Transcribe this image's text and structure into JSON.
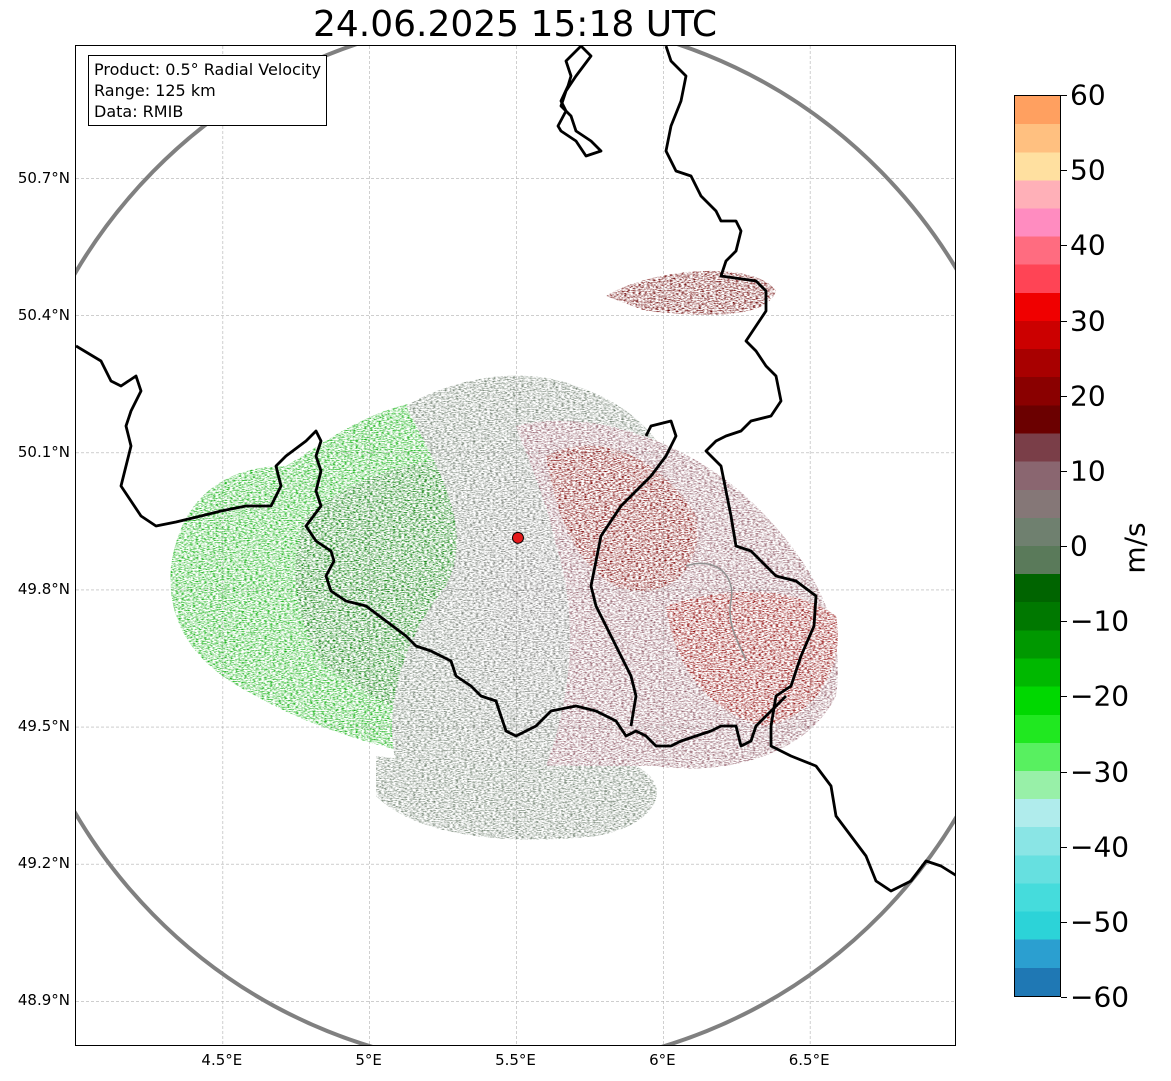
{
  "title": "24.06.2025 15:18 UTC",
  "info_box": {
    "product": "Product: 0.5° Radial Velocity",
    "range": "Range: 125 km",
    "data": "Data: RMIB"
  },
  "axes": {
    "lat_labels": [
      "50.7°N",
      "50.4°N",
      "50.1°N",
      "49.8°N",
      "49.5°N",
      "49.2°N",
      "48.9°N"
    ],
    "lon_labels": [
      "4.5°E",
      "5°E",
      "5.5°E",
      "6°E",
      "6.5°E"
    ],
    "lat_values": [
      50.7,
      50.4,
      50.1,
      49.8,
      49.5,
      49.2,
      48.9
    ],
    "lon_values": [
      4.5,
      5.0,
      5.5,
      6.0,
      6.5
    ],
    "lon_range": [
      4.0,
      7.0
    ],
    "lat_range": [
      48.8,
      50.99
    ],
    "grid": true
  },
  "radar": {
    "site_lon": 5.505,
    "site_lat": 49.914,
    "range_km": 125,
    "site_marker_color": "#e41a1c",
    "range_ring_color": "#808080"
  },
  "colorbar": {
    "unit": "m/s",
    "min": -60,
    "max": 60,
    "tick_labels": [
      "60",
      "50",
      "40",
      "30",
      "20",
      "10",
      "0",
      "−10",
      "−20",
      "−30",
      "−40",
      "−50",
      "−60"
    ],
    "tick_values": [
      60,
      50,
      40,
      30,
      20,
      10,
      0,
      -10,
      -20,
      -30,
      -40,
      -50,
      -60
    ],
    "colors": [
      "#1f78b4",
      "#2b9fd0",
      "#2cd3d8",
      "#45dcdc",
      "#66e0e0",
      "#8ae5e5",
      "#b0ecec",
      "#98f0a8",
      "#58f060",
      "#20e820",
      "#00d800",
      "#00b800",
      "#009800",
      "#007800",
      "#006400",
      "#5a7a5a",
      "#6f806f",
      "#857777",
      "#8a6670",
      "#7a3e48",
      "#6b0000",
      "#8a0000",
      "#a80000",
      "#cc0000",
      "#f00000",
      "#ff4455",
      "#ff6c80",
      "#ff8cc0",
      "#ffb0b8",
      "#ffe0a0",
      "#ffc080",
      "#ffa060"
    ]
  },
  "colors": {
    "approaching_green": "#00a000",
    "receding_red": "#8b0000",
    "near_zero_grey": "#6e7b6e",
    "border": "#000000",
    "river": "#909090"
  }
}
